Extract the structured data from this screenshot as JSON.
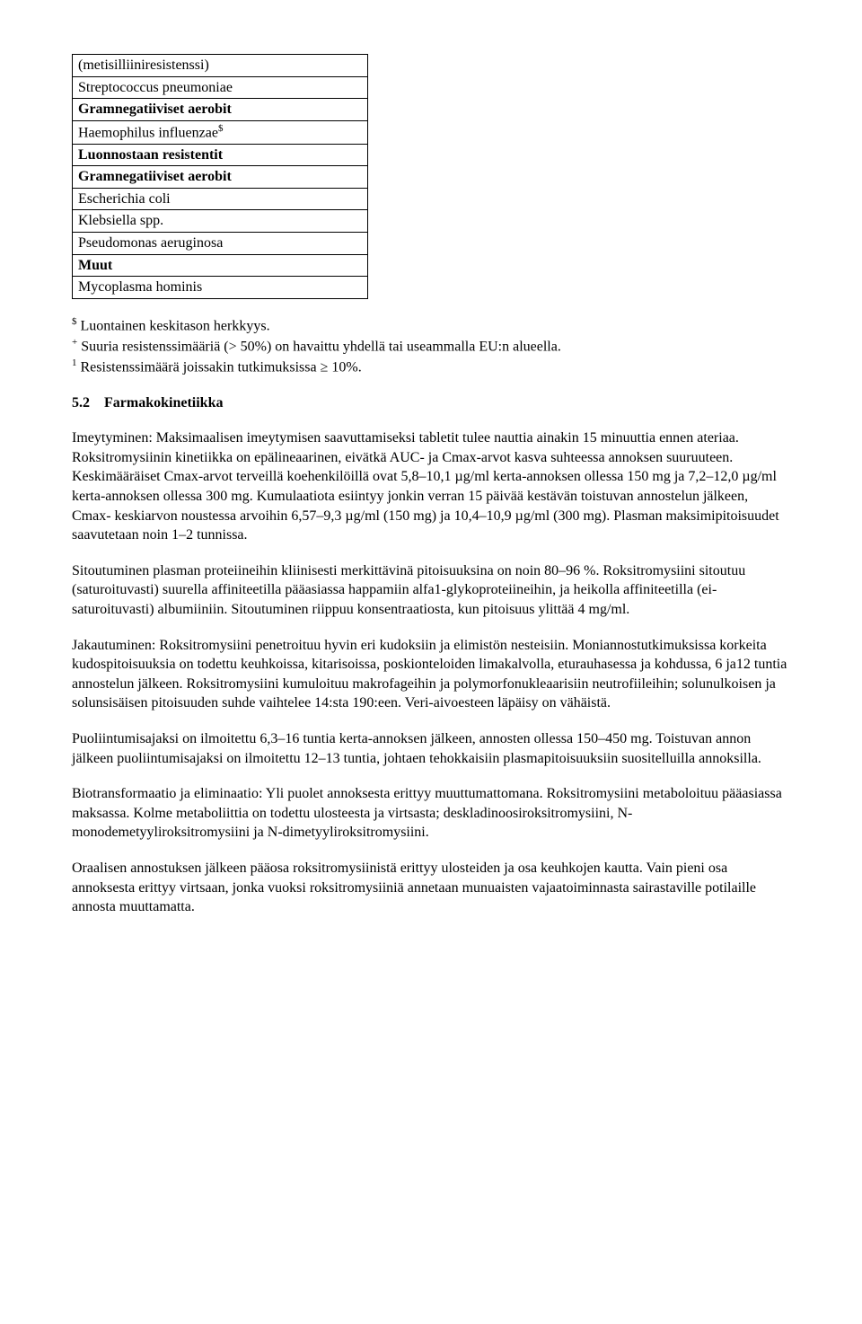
{
  "table": {
    "rows": [
      {
        "text": "(metisilliiniresistenssi)",
        "bold": false
      },
      {
        "text": "Streptococcus pneumoniae",
        "bold": false
      },
      {
        "text": "Gramnegatiiviset aerobit",
        "bold": true
      },
      {
        "text": "Haemophilus influenzae$",
        "bold": false,
        "sup": "$"
      },
      {
        "text": "Luonnostaan resistentit",
        "bold": true
      },
      {
        "text": "Gramnegatiiviset aerobit",
        "bold": true
      },
      {
        "text": "Escherichia coli",
        "bold": false
      },
      {
        "text": "Klebsiella spp.",
        "bold": false
      },
      {
        "text": "Pseudomonas aeruginosa",
        "bold": false
      },
      {
        "text": "Muut",
        "bold": true
      },
      {
        "text": "Mycoplasma hominis",
        "bold": false
      }
    ]
  },
  "footnotes": {
    "a_sup": "$",
    "a_text": " Luontainen keskitason herkkyys.",
    "b_sup": "+",
    "b_text": " Suuria resistenssimääriä (> 50%) on havaittu yhdellä tai useammalla EU:n alueella.",
    "c_sup": "1",
    "c_text": " Resistenssimäärä joissakin tutkimuksissa ≥ 10%."
  },
  "section": {
    "number": "5.2",
    "title": "Farmakokinetiikka"
  },
  "paragraphs": {
    "p1": "Imeytyminen: Maksimaalisen imeytymisen saavuttamiseksi tabletit tulee nauttia ainakin 15 minuuttia ennen ateriaa. Roksitromysiinin kinetiikka on epälineaarinen, eivätkä AUC- ja Cmax-arvot kasva suhteessa annoksen suuruuteen. Keskimääräiset Cmax-arvot terveillä koehenkilöillä ovat 5,8–10,1 µg/ml kerta-annoksen ollessa 150 mg ja 7,2–12,0 µg/ml kerta-annoksen ollessa 300 mg. Kumulaatiota esiintyy jonkin verran 15 päivää kestävän toistuvan annostelun jälkeen, Cmax- keskiarvon noustessa arvoihin 6,57–9,3 µg/ml (150 mg) ja 10,4–10,9 µg/ml (300 mg). Plasman maksimipitoisuudet saavutetaan noin 1–2 tunnissa.",
    "p2": "Sitoutuminen plasman proteiineihin kliinisesti merkittävinä pitoisuuksina on noin 80–96 %. Roksitromysiini sitoutuu (saturoituvasti) suurella affiniteetilla pääasiassa happamiin alfa1-glykoproteiineihin, ja heikolla affiniteetilla (ei-saturoituvasti) albumiiniin. Sitoutuminen riippuu konsentraatiosta, kun pitoisuus ylittää 4 mg/ml.",
    "p3": "Jakautuminen: Roksitromysiini penetroituu hyvin eri kudoksiin ja elimistön nesteisiin. Moniannostutkimuksissa korkeita kudospitoisuuksia on todettu keuhkoissa, kitarisoissa, poskionteloiden limakalvolla, eturauhasessa ja kohdussa, 6 ja12 tuntia annostelun jälkeen. Roksitromysiini kumuloituu makrofageihin ja polymorfonukleaarisiin neutrofiileihin; solunulkoisen ja solunsisäisen pitoisuuden suhde vaihtelee 14:sta 190:een. Veri-aivoesteen läpäisy on vähäistä.",
    "p4": "Puoliintumisajaksi on ilmoitettu 6,3–16 tuntia kerta-annoksen jälkeen, annosten ollessa 150–450 mg. Toistuvan annon jälkeen puoliintumisajaksi on ilmoitettu 12–13 tuntia, johtaen tehokkaisiin plasmapitoisuuksiin suositelluilla annoksilla.",
    "p5": "Biotransformaatio ja eliminaatio: Yli puolet annoksesta erittyy muuttumattomana. Roksitromysiini metaboloituu pääasiassa maksassa. Kolme metaboliittia on todettu ulosteesta ja virtsasta; deskladinoosiroksitromysiini, N-monodemetyyliroksitromysiini ja N-dimetyyliroksitromysiini.",
    "p6": "Oraalisen annostuksen jälkeen pääosa roksitromysiinistä erittyy ulosteiden ja osa keuhkojen kautta. Vain pieni osa annoksesta erittyy virtsaan, jonka vuoksi roksitromysiiniä annetaan munuaisten vajaatoiminnasta sairastaville potilaille annosta muuttamatta."
  }
}
